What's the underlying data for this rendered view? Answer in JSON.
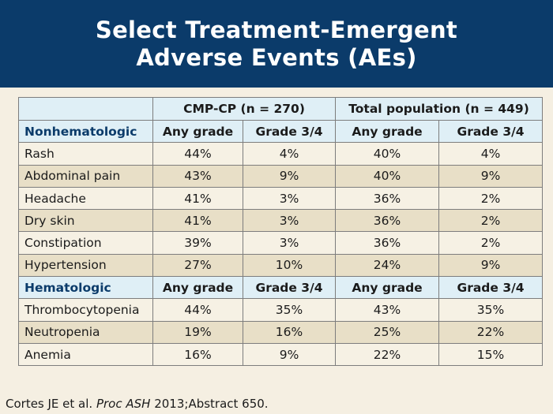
{
  "title": {
    "line1": "Select Treatment-Emergent",
    "line2": "Adverse Events (AEs)"
  },
  "table": {
    "group_headers": [
      "",
      "CMP-CP (n = 270)",
      "Total population (n = 449)"
    ],
    "sections": [
      {
        "name": "Nonhematologic",
        "subheaders": [
          "Any grade",
          "Grade 3/4",
          "Any grade",
          "Grade 3/4"
        ],
        "rows": [
          {
            "label": "Rash",
            "values": [
              "44%",
              "4%",
              "40%",
              "4%"
            ]
          },
          {
            "label": "Abdominal pain",
            "values": [
              "43%",
              "9%",
              "40%",
              "9%"
            ]
          },
          {
            "label": "Headache",
            "values": [
              "41%",
              "3%",
              "36%",
              "2%"
            ]
          },
          {
            "label": "Dry skin",
            "values": [
              "41%",
              "3%",
              "36%",
              "2%"
            ]
          },
          {
            "label": "Constipation",
            "values": [
              "39%",
              "3%",
              "36%",
              "2%"
            ]
          },
          {
            "label": "Hypertension",
            "values": [
              "27%",
              "10%",
              "24%",
              "9%"
            ]
          }
        ]
      },
      {
        "name": "Hematologic",
        "subheaders": [
          "Any grade",
          "Grade 3/4",
          "Any grade",
          "Grade 3/4"
        ],
        "rows": [
          {
            "label": "Thrombocytopenia",
            "values": [
              "44%",
              "35%",
              "43%",
              "35%"
            ]
          },
          {
            "label": "Neutropenia",
            "values": [
              "19%",
              "16%",
              "25%",
              "22%"
            ]
          },
          {
            "label": "Anemia",
            "values": [
              "16%",
              "9%",
              "22%",
              "15%"
            ]
          }
        ]
      }
    ]
  },
  "citation": {
    "authors": "Cortes JE et al.",
    "journal": "Proc ASH",
    "rest": "2013;Abstract 650."
  },
  "colors": {
    "header_bg": "#0b3b6a",
    "slide_bg": "#f5efe2",
    "table_header_bg": "#dfeff6",
    "row_light": "#f6f1e4",
    "row_dark": "#e8dfc7"
  }
}
